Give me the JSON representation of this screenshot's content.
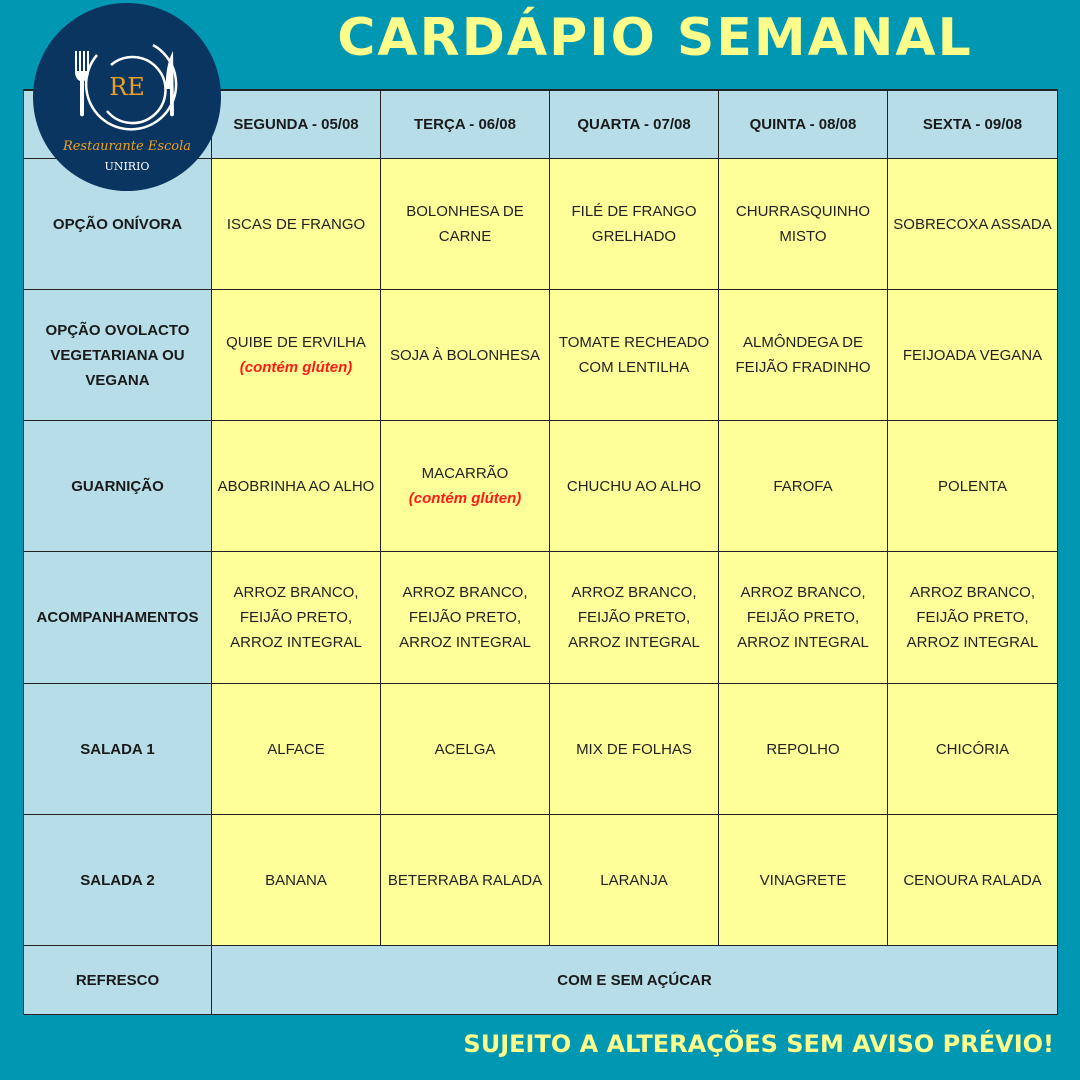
{
  "title": "CARDÁPIO SEMANAL",
  "logo": {
    "initials": "RE",
    "name": "Restaurante Escola",
    "institution": "UNIRIO"
  },
  "colors": {
    "background": "#0097b2",
    "header_cells": "#b6dde8",
    "menu_cells": "#ffff99",
    "title": "#fdfd8c",
    "warning": "#ff1a1a",
    "logo_bg": "#0a3560",
    "logo_accent": "#f0a020"
  },
  "days": [
    "SEGUNDA - 05/08",
    "TERÇA - 06/08",
    "QUARTA - 07/08",
    "QUINTA - 08/08",
    "SEXTA - 09/08"
  ],
  "rows": [
    {
      "label": "OPÇÃO ONÍVORA",
      "cells": [
        {
          "text": "ISCAS DE FRANGO"
        },
        {
          "text": "BOLONHESA DE CARNE"
        },
        {
          "text": "FILÉ DE FRANGO GRELHADO"
        },
        {
          "text": "CHURRASQUINHO MISTO"
        },
        {
          "text": "SOBRECOXA ASSADA"
        }
      ]
    },
    {
      "label": "OPÇÃO OVOLACTO VEGETARIANA OU VEGANA",
      "cells": [
        {
          "text": "QUIBE DE ERVILHA",
          "note": "(contém glúten)"
        },
        {
          "text": "SOJA À BOLONHESA"
        },
        {
          "text": "TOMATE RECHEADO COM LENTILHA"
        },
        {
          "text": "ALMÔNDEGA DE FEIJÃO FRADINHO"
        },
        {
          "text": "FEIJOADA VEGANA"
        }
      ]
    },
    {
      "label": "GUARNIÇÃO",
      "cells": [
        {
          "text": "ABOBRINHA AO ALHO"
        },
        {
          "text": "MACARRÃO",
          "note": "(contém glúten)"
        },
        {
          "text": "CHUCHU AO ALHO"
        },
        {
          "text": "FAROFA"
        },
        {
          "text": "POLENTA"
        }
      ]
    },
    {
      "label": "ACOMPANHAMENTOS",
      "cells": [
        {
          "text": "ARROZ BRANCO, FEIJÃO PRETO, ARROZ INTEGRAL"
        },
        {
          "text": "ARROZ BRANCO, FEIJÃO PRETO, ARROZ INTEGRAL"
        },
        {
          "text": "ARROZ BRANCO, FEIJÃO PRETO, ARROZ INTEGRAL"
        },
        {
          "text": "ARROZ BRANCO, FEIJÃO PRETO, ARROZ INTEGRAL"
        },
        {
          "text": "ARROZ BRANCO, FEIJÃO PRETO, ARROZ INTEGRAL"
        }
      ]
    },
    {
      "label": "SALADA 1",
      "cells": [
        {
          "text": "ALFACE"
        },
        {
          "text": "ACELGA"
        },
        {
          "text": "MIX DE FOLHAS"
        },
        {
          "text": "REPOLHO"
        },
        {
          "text": "CHICÓRIA"
        }
      ]
    },
    {
      "label": "SALADA 2",
      "cells": [
        {
          "text": "BANANA"
        },
        {
          "text": "BETERRABA RALADA"
        },
        {
          "text": "LARANJA"
        },
        {
          "text": "VINAGRETE"
        },
        {
          "text": "CENOURA RALADA"
        }
      ]
    }
  ],
  "refresco": {
    "label": "REFRESCO",
    "value": "COM E SEM AÇÚCAR"
  },
  "footer": "SUJEITO A ALTERAÇÕES SEM AVISO PRÉVIO!"
}
